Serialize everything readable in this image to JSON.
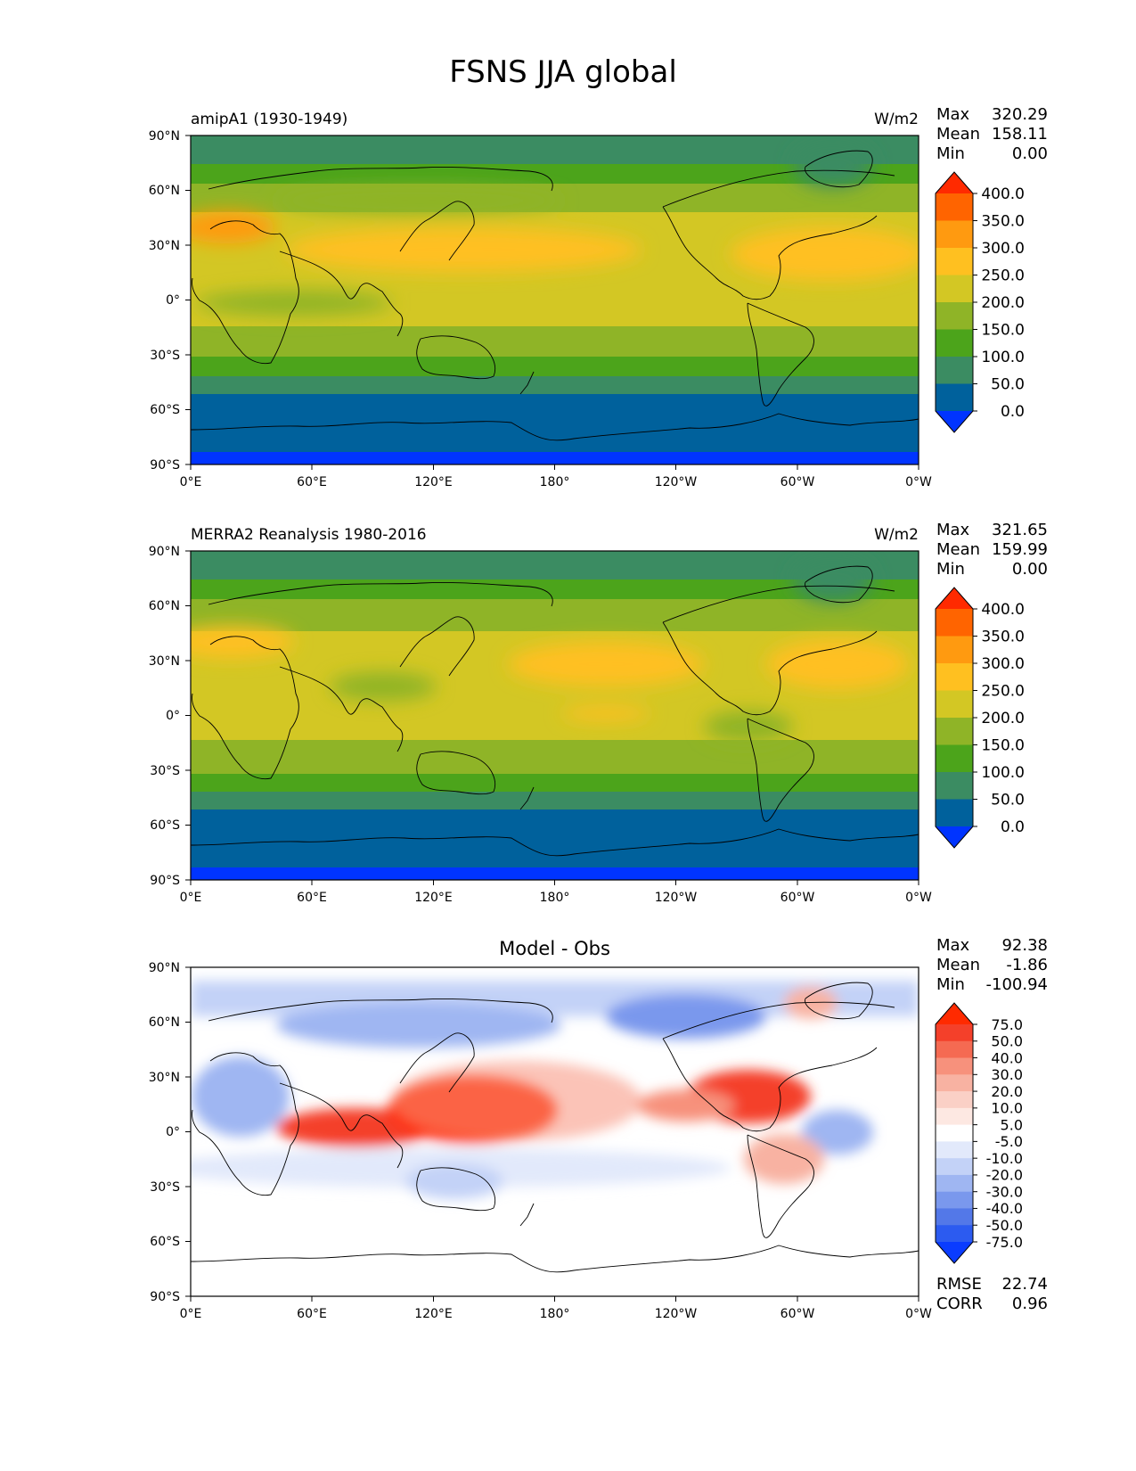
{
  "title": "FSNS JJA global",
  "lat_ticks": [
    "90°N",
    "60°N",
    "30°N",
    "0°",
    "30°S",
    "60°S",
    "90°S"
  ],
  "lon_ticks": [
    "0°E",
    "60°E",
    "120°E",
    "180°",
    "120°W",
    "60°W",
    "0°W"
  ],
  "panels": [
    {
      "left_title": "amipA1 (1930-1949)",
      "center_title": "",
      "units": "W/m2",
      "stats": [
        {
          "label": "Max",
          "value": "320.29"
        },
        {
          "label": "Mean",
          "value": "158.11"
        },
        {
          "label": "Min",
          "value": "0.00"
        }
      ],
      "colorbar": {
        "labels": [
          "400.0",
          "350.0",
          "300.0",
          "250.0",
          "200.0",
          "150.0",
          "100.0",
          "50.0",
          "0.0"
        ],
        "colors": [
          "#ff2a00",
          "#ff6400",
          "#ff9a10",
          "#ffc020",
          "#d3c724",
          "#8fb427",
          "#4ca41b",
          "#3b8c62",
          "#00619c",
          "#0034ff"
        ]
      }
    },
    {
      "left_title": "MERRA2 Reanalysis 1980-2016",
      "center_title": "",
      "units": "W/m2",
      "stats": [
        {
          "label": "Max",
          "value": "321.65"
        },
        {
          "label": "Mean",
          "value": "159.99"
        },
        {
          "label": "Min",
          "value": "0.00"
        }
      ],
      "colorbar": {
        "labels": [
          "400.0",
          "350.0",
          "300.0",
          "250.0",
          "200.0",
          "150.0",
          "100.0",
          "50.0",
          "0.0"
        ],
        "colors": [
          "#ff2a00",
          "#ff6400",
          "#ff9a10",
          "#ffc020",
          "#d3c724",
          "#8fb427",
          "#4ca41b",
          "#3b8c62",
          "#00619c",
          "#0034ff"
        ]
      }
    },
    {
      "left_title": "",
      "center_title": "Model - Obs",
      "units": "",
      "stats": [
        {
          "label": "Max",
          "value": "92.38"
        },
        {
          "label": "Mean",
          "value": "-1.86"
        },
        {
          "label": "Min",
          "value": "-100.94"
        }
      ],
      "colorbar": {
        "labels": [
          "75.0",
          "50.0",
          "40.0",
          "30.0",
          "20.0",
          "10.0",
          "5.0",
          "-5.0",
          "-10.0",
          "-20.0",
          "-30.0",
          "-40.0",
          "-50.0",
          "-75.0"
        ],
        "colors": [
          "#ff2a00",
          "#f4402a",
          "#f56a52",
          "#f7917c",
          "#f8b2a2",
          "#fad0c6",
          "#fde8e2",
          "#ffffff",
          "#e2e9fb",
          "#c3d2f7",
          "#9fb6f2",
          "#7a98ed",
          "#5378e8",
          "#2c5bf0",
          "#0a3cff"
        ]
      },
      "extra_stats": [
        {
          "label": "RMSE",
          "value": "22.74"
        },
        {
          "label": "CORR",
          "value": "0.96"
        }
      ]
    }
  ]
}
